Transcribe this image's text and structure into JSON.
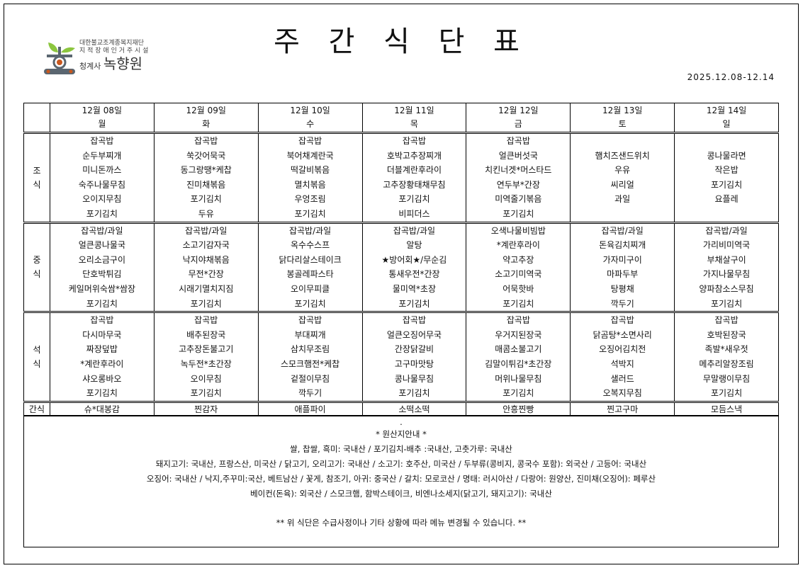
{
  "title": "주 간 식 단 표",
  "logo": {
    "line1": "대한불교조계종복지재단",
    "line2": "지 적 장 애 인 거 주 시 설",
    "prefix": "청계사",
    "name": "녹향원",
    "colors": {
      "leaf": "#8cc63f",
      "body": "#5a6670",
      "dot": "#c8571e"
    }
  },
  "date_range": "2025.12.08-12.14",
  "days": [
    {
      "date": "12월 08일",
      "weekday": "월"
    },
    {
      "date": "12월 09일",
      "weekday": "화"
    },
    {
      "date": "12월 10일",
      "weekday": "수"
    },
    {
      "date": "12월 11일",
      "weekday": "목"
    },
    {
      "date": "12월 12일",
      "weekday": "금"
    },
    {
      "date": "12월 13일",
      "weekday": "토"
    },
    {
      "date": "12월 14일",
      "weekday": "일"
    }
  ],
  "meals": [
    {
      "label1": "조",
      "label2": "식",
      "days": [
        [
          "잡곡밥",
          "순두부찌개",
          "미니돈까스",
          "숙주나물무침",
          "오이지무침",
          "포기김치"
        ],
        [
          "잡곡밥",
          "쑥갓어묵국",
          "동그랑땡*케찹",
          "진미채볶음",
          "포기김치",
          "두유"
        ],
        [
          "잡곡밥",
          "북어채계란국",
          "떡갈비볶음",
          "멸치볶음",
          "우엉조림",
          "포기김치"
        ],
        [
          "잡곡밥",
          "호박고추장찌개",
          "더블계란후라이",
          "고추장황태채무침",
          "포기김치",
          "비피더스"
        ],
        [
          "잡곡밥",
          "얼큰버섯국",
          "치킨너겟*머스타드",
          "연두부*간장",
          "미역줄기볶음",
          "포기김치"
        ],
        [
          "",
          "햄치즈샌드위치",
          "우유",
          "씨리얼",
          "과일",
          ""
        ],
        [
          "",
          "콩나물라면",
          "작은밥",
          "포기김치",
          "요플레",
          ""
        ]
      ]
    },
    {
      "label1": "중",
      "label2": "식",
      "days": [
        [
          "잡곡밥/과일",
          "얼큰콩나물국",
          "오리소금구이",
          "단호박튀김",
          "케일머위숙쌈*쌈장",
          "포기김치"
        ],
        [
          "잡곡밥/과일",
          "소고기감자국",
          "낙지야채볶음",
          "무전*간장",
          "시래기멸치지짐",
          "포기김치"
        ],
        [
          "잡곡밥/과일",
          "옥수수스프",
          "닭다리살스테이크",
          "봉골레파스타",
          "오이무피클",
          "포기김치"
        ],
        [
          "잡곡밥/과일",
          "알탕",
          "★방어회★/무순김",
          "통새우전*간장",
          "물미역*초장",
          "포기김치"
        ],
        [
          "오색나물비빔밥",
          "*계란후라이",
          "약고추장",
          "소고기미역국",
          "어묵핫바",
          "포기김치"
        ],
        [
          "잡곡밥/과일",
          "돈육김치찌개",
          "가자미구이",
          "마파두부",
          "탕평채",
          "깍두기"
        ],
        [
          "잡곡밥/과일",
          "가리비미역국",
          "부채살구이",
          "가지나물무침",
          "양파참소스무침",
          "포기김치"
        ]
      ]
    },
    {
      "label1": "석",
      "label2": "식",
      "days": [
        [
          "잡곡밥",
          "다시마무국",
          "짜장덮밥",
          "*계란후라이",
          "샤오롱바오",
          "포기김치"
        ],
        [
          "잡곡밥",
          "배추된장국",
          "고추장돈불고기",
          "녹두전*초간장",
          "오이무침",
          "포기김치"
        ],
        [
          "잡곡밥",
          "부대찌개",
          "삼치무조림",
          "스모크햄전*케찹",
          "겉절이무침",
          "깍두기"
        ],
        [
          "잡곡밥",
          "얼큰오징어무국",
          "간장닭갈비",
          "고구마맛탕",
          "콩나물무침",
          "포기김치"
        ],
        [
          "잡곡밥",
          "우거지된장국",
          "매콤소불고기",
          "김말이튀김*초간장",
          "머위나물무침",
          "포기김치"
        ],
        [
          "잡곡밥",
          "닭곰탕*소면사리",
          "오징어김치전",
          "석박지",
          "샐러드",
          "오복지무침"
        ],
        [
          "잡곡밥",
          "호박된장국",
          "족발*새우젓",
          "메추리알장조림",
          "무말랭이무침",
          "포기김치"
        ]
      ]
    }
  ],
  "snack": {
    "label": "간식",
    "items": [
      "슈*대봉감",
      "찐감자",
      "애플파이",
      "소떡소떡",
      "안흥찐빵",
      "찐고구마",
      "모듬스낵"
    ]
  },
  "notes": {
    "dot": ".",
    "heading": "* 원산지안내 *",
    "lines": [
      "쌀, 찹쌀, 흑미: 국내산  / 포기김치-배추 :국내산, 고춧가루: 국내산",
      "돼지고기: 국내산, 프랑스산, 미국산 / 닭고기, 오리고기: 국내산 / 소고기: 호주산, 미국산  / 두부류(콩비지, 콩국수 포함): 외국산 / 고등어: 국내산",
      "오징어: 국내산 / 낙지,주꾸미:국산, 베트남산 / 꽃게, 참조기, 아귀: 중국산 / 갈치: 모로코산 / 명태: 러시아산 / 다랑어: 원양산, 진미채(오징어): 페루산",
      "베이컨(돈육): 외국산 / 스모크햄, 함박스테이크, 비엔나소세지(닭고기, 돼지고기): 국내산"
    ],
    "warning": "** 위 식단은 수급사정이나 기타 상황에 따라 메뉴 변경될 수 있습니다. **"
  }
}
